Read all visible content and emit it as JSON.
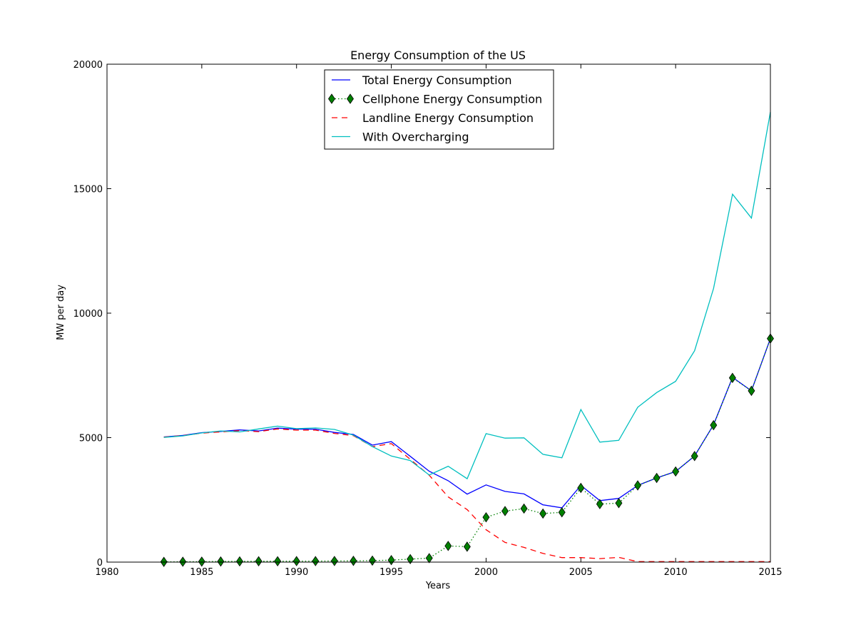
{
  "chart_data": {
    "type": "line",
    "title": "Energy Consumption of the US",
    "xlabel": "Years",
    "ylabel": "MW per day",
    "xlim": [
      1980,
      2015
    ],
    "ylim": [
      0,
      20000
    ],
    "xticks": [
      1980,
      1985,
      1990,
      1995,
      2000,
      2005,
      2010,
      2015
    ],
    "yticks": [
      0,
      5000,
      10000,
      15000,
      20000
    ],
    "x": [
      1983,
      1984,
      1985,
      1986,
      1987,
      1988,
      1989,
      1990,
      1991,
      1992,
      1993,
      1994,
      1995,
      1996,
      1997,
      1998,
      1999,
      2000,
      2001,
      2002,
      2003,
      2004,
      2005,
      2006,
      2007,
      2008,
      2009,
      2010,
      2011,
      2012,
      2013,
      2014,
      2015
    ],
    "legend_position": "top-center",
    "series": [
      {
        "name": "Total Energy Consumption",
        "color": "#0000ff",
        "style": "solid",
        "marker": "none",
        "values": [
          5030,
          5090,
          5200,
          5250,
          5310,
          5270,
          5380,
          5340,
          5340,
          5210,
          5130,
          4700,
          4840,
          4250,
          3650,
          3270,
          2730,
          3100,
          2840,
          2740,
          2300,
          2180,
          3080,
          2470,
          2560,
          3080,
          3380,
          3640,
          4260,
          5520,
          7420,
          6880,
          8980
        ]
      },
      {
        "name": "Cellphone Energy Consumption",
        "color": "#008000",
        "style": "dotted",
        "marker": "diamond",
        "values": [
          10,
          15,
          20,
          25,
          30,
          35,
          35,
          40,
          40,
          45,
          50,
          60,
          80,
          120,
          160,
          650,
          620,
          1800,
          2050,
          2150,
          1950,
          2000,
          2980,
          2330,
          2370,
          3080,
          3380,
          3640,
          4260,
          5500,
          7400,
          6880,
          8980
        ]
      },
      {
        "name": "Landline Energy Consumption",
        "color": "#ff0000",
        "style": "dashed",
        "marker": "none",
        "values": [
          5020,
          5080,
          5180,
          5230,
          5280,
          5240,
          5350,
          5300,
          5300,
          5170,
          5080,
          4640,
          4760,
          4130,
          3490,
          2620,
          2110,
          1300,
          790,
          590,
          350,
          180,
          180,
          140,
          190,
          20,
          20,
          20,
          20,
          20,
          20,
          20,
          20
        ]
      },
      {
        "name": "With Overcharging",
        "color": "#00bfbf",
        "style": "solid",
        "marker": "none",
        "values": [
          5010,
          5070,
          5190,
          5270,
          5230,
          5350,
          5460,
          5360,
          5390,
          5330,
          5100,
          4640,
          4260,
          4080,
          3500,
          3850,
          3350,
          5160,
          4980,
          4990,
          4330,
          4190,
          6130,
          4820,
          4890,
          6220,
          6810,
          7260,
          8490,
          10990,
          14780,
          13820,
          18080
        ]
      }
    ]
  }
}
